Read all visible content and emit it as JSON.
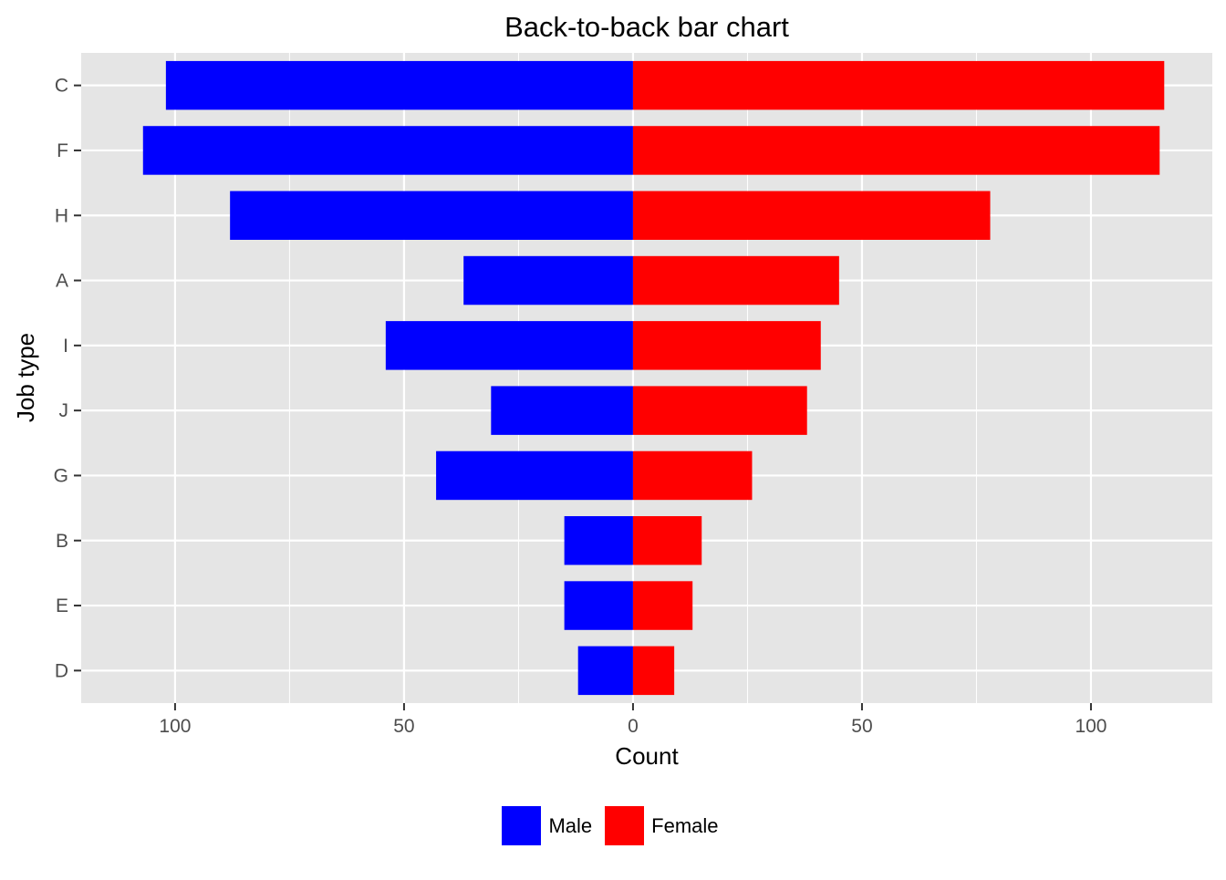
{
  "chart_data": {
    "type": "bar",
    "orientation": "horizontal",
    "title": "Back-to-back bar chart",
    "xlabel": "Count",
    "ylabel": "Job type",
    "categories": [
      "C",
      "F",
      "H",
      "A",
      "I",
      "J",
      "G",
      "B",
      "E",
      "D"
    ],
    "series": [
      {
        "name": "Male",
        "values": [
          102,
          107,
          88,
          37,
          54,
          31,
          43,
          15,
          15,
          12
        ],
        "color": "#0000ff",
        "direction": "left"
      },
      {
        "name": "Female",
        "values": [
          116,
          115,
          78,
          45,
          41,
          38,
          26,
          15,
          13,
          9
        ],
        "color": "#ff0000",
        "direction": "right"
      }
    ],
    "xlim": [
      -120.5,
      126.5
    ],
    "x_ticks": [
      {
        "value": -100,
        "label": "100"
      },
      {
        "value": -50,
        "label": "50"
      },
      {
        "value": 0,
        "label": "0"
      },
      {
        "value": 50,
        "label": "50"
      },
      {
        "value": 100,
        "label": "100"
      }
    ],
    "grid": true,
    "legend_position": "bottom",
    "panel_background": "#e5e5e5"
  }
}
